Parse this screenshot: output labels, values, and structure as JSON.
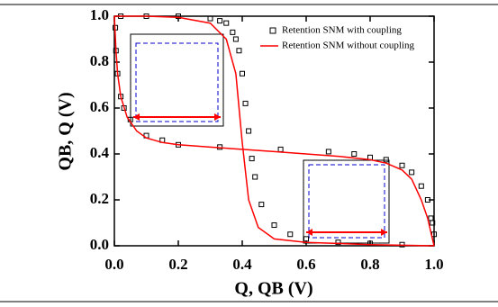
{
  "chart_data": {
    "type": "line",
    "x_label": "Q, QB (V)",
    "y_label": "QB, Q (V)",
    "xlim": [
      0,
      1
    ],
    "ylim": [
      0,
      1
    ],
    "xticks": [
      {
        "value": 0,
        "label": "0.0"
      },
      {
        "value": 0.2,
        "label": "0.2"
      },
      {
        "value": 0.4,
        "label": "0.4"
      },
      {
        "value": 0.6,
        "label": "0.6"
      },
      {
        "value": 0.8,
        "label": "0.8"
      },
      {
        "value": 1,
        "label": "1.0"
      }
    ],
    "yticks": [
      {
        "value": 0,
        "label": "0.0"
      },
      {
        "value": 0.2,
        "label": "0.2"
      },
      {
        "value": 0.4,
        "label": "0.4"
      },
      {
        "value": 0.6,
        "label": "0.6"
      },
      {
        "value": 0.8,
        "label": "0.8"
      },
      {
        "value": 1,
        "label": "1.0"
      }
    ],
    "legend": "upper right",
    "series": [
      {
        "name": "Retention SNM with coupling",
        "color": "#000000",
        "marker": "square",
        "x": [
          0.003,
          0.005,
          0.01,
          0.02,
          0.03,
          0.05,
          0.1,
          0.15,
          0.2,
          0.33,
          0.52,
          0.67,
          0.75,
          0.8,
          0.85,
          0.9,
          0.93,
          0.96,
          0.98,
          0.99,
          0.995,
          1.0,
          0.02,
          0.1,
          0.2,
          0.3,
          0.33,
          0.35,
          0.37,
          0.38,
          0.39,
          0.4,
          0.41,
          0.42,
          0.43,
          0.44,
          0.46,
          0.5,
          0.55,
          0.6,
          0.7,
          0.8,
          0.9
        ],
        "values": [
          0.95,
          0.85,
          0.75,
          0.65,
          0.6,
          0.55,
          0.48,
          0.46,
          0.44,
          0.43,
          0.42,
          0.41,
          0.4,
          0.385,
          0.375,
          0.35,
          0.32,
          0.26,
          0.2,
          0.12,
          0.1,
          0.05,
          1.0,
          1.0,
          1.0,
          0.99,
          0.98,
          0.97,
          0.93,
          0.9,
          0.85,
          0.75,
          0.62,
          0.5,
          0.38,
          0.3,
          0.18,
          0.09,
          0.05,
          0.03,
          0.015,
          0.01,
          0.005
        ]
      },
      {
        "name": "Retention SNM without coupling",
        "color": "#ff0000",
        "marker": "none",
        "x": [
          0,
          0.1,
          0.2,
          0.3,
          0.35,
          0.38,
          0.4,
          0.42,
          0.45,
          0.5,
          0.6,
          0.8,
          1.0,
          null,
          0,
          0.005,
          0.01,
          0.02,
          0.04,
          0.07,
          0.1,
          0.15,
          0.2,
          0.3,
          0.4,
          0.5,
          0.6,
          0.7,
          0.8,
          0.85,
          0.9,
          0.93,
          0.96,
          0.98,
          0.99,
          1.0
        ],
        "values": [
          1,
          1,
          0.995,
          0.97,
          0.9,
          0.75,
          0.45,
          0.2,
          0.08,
          0.03,
          0.015,
          0.005,
          0,
          null,
          1,
          0.85,
          0.75,
          0.65,
          0.56,
          0.5,
          0.47,
          0.45,
          0.44,
          0.43,
          0.42,
          0.41,
          0.4,
          0.39,
          0.375,
          0.36,
          0.33,
          0.29,
          0.2,
          0.12,
          0.06,
          0
        ]
      }
    ]
  }
}
